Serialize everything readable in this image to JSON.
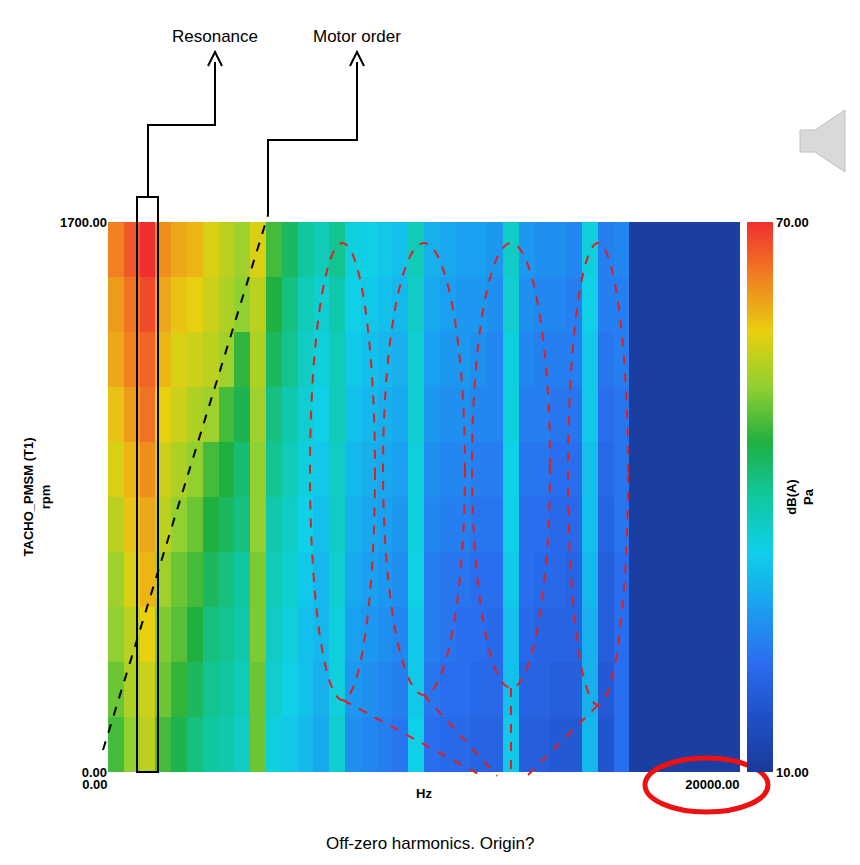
{
  "chart_data": {
    "type": "heatmap",
    "xlabel": "Hz",
    "ylabel": [
      "TACHO_PMSM (T1)",
      "rpm"
    ],
    "xlim": [
      0,
      20000
    ],
    "ylim": [
      0,
      1700
    ],
    "xticks": [
      {
        "value": 0,
        "label": "0.00"
      },
      {
        "value": 20000,
        "label": "20000.00"
      }
    ],
    "yticks": [
      {
        "value": 0,
        "label": "0.00"
      },
      {
        "value": 1700,
        "label": "1700.00"
      }
    ],
    "x_bins": [
      0,
      500,
      1000,
      1500,
      2000,
      2500,
      3000,
      3500,
      4000,
      4500,
      5000,
      5500,
      6000,
      6500,
      7000,
      7500,
      8000,
      8500,
      9000,
      9500,
      10000,
      10500,
      11000,
      11500,
      12000,
      12500,
      13000,
      13500,
      14000,
      14500,
      15000,
      15500,
      16000,
      16500,
      17000,
      17500,
      18000,
      18500,
      19000,
      19500,
      20000
    ],
    "y_bins": [
      0,
      170,
      340,
      510,
      680,
      850,
      1020,
      1190,
      1360,
      1530,
      1700
    ],
    "cells": [
      [
        48,
        52,
        55,
        48,
        45,
        42,
        40,
        39,
        37,
        50,
        35,
        33,
        31,
        29,
        36,
        26,
        25,
        24,
        23,
        34,
        22,
        21,
        21,
        20,
        20,
        33,
        19,
        19,
        18,
        18,
        31,
        17,
        22,
        11,
        11,
        11,
        11,
        11,
        11,
        11
      ],
      [
        50,
        54,
        56,
        50,
        47,
        44,
        41,
        40,
        38,
        50,
        36,
        34,
        32,
        30,
        35,
        27,
        26,
        25,
        24,
        33,
        23,
        22,
        22,
        21,
        21,
        32,
        20,
        20,
        19,
        19,
        30,
        18,
        22,
        11,
        11,
        11,
        11,
        11,
        11,
        11
      ],
      [
        52,
        55,
        58,
        51,
        49,
        46,
        42,
        41,
        39,
        51,
        37,
        35,
        32,
        31,
        35,
        28,
        27,
        26,
        25,
        33,
        24,
        23,
        22,
        22,
        21,
        32,
        21,
        20,
        20,
        20,
        30,
        19,
        22,
        11,
        11,
        11,
        11,
        11,
        11,
        11
      ],
      [
        53,
        57,
        60,
        53,
        50,
        48,
        44,
        42,
        40,
        51,
        38,
        36,
        33,
        31,
        36,
        29,
        28,
        27,
        26,
        34,
        24,
        23,
        23,
        22,
        22,
        33,
        22,
        21,
        21,
        20,
        31,
        19,
        22,
        11,
        11,
        11,
        11,
        11,
        11,
        11
      ],
      [
        55,
        59,
        61,
        55,
        52,
        50,
        46,
        44,
        42,
        52,
        39,
        37,
        34,
        32,
        37,
        30,
        29,
        28,
        27,
        35,
        25,
        24,
        24,
        23,
        23,
        34,
        22,
        22,
        21,
        21,
        32,
        20,
        23,
        11,
        11,
        11,
        11,
        11,
        11,
        11
      ],
      [
        57,
        60,
        63,
        56,
        54,
        52,
        48,
        46,
        43,
        52,
        41,
        38,
        35,
        33,
        37,
        31,
        30,
        29,
        28,
        35,
        26,
        25,
        25,
        24,
        24,
        34,
        23,
        23,
        22,
        22,
        32,
        21,
        23,
        11,
        11,
        11,
        11,
        11,
        11,
        11
      ],
      [
        59,
        62,
        65,
        58,
        56,
        54,
        53,
        48,
        45,
        53,
        42,
        39,
        36,
        34,
        38,
        32,
        31,
        30,
        29,
        36,
        27,
        26,
        26,
        25,
        25,
        35,
        24,
        24,
        23,
        23,
        33,
        22,
        23,
        11,
        11,
        11,
        11,
        11,
        11,
        11
      ],
      [
        61,
        64,
        66,
        60,
        57,
        56,
        55,
        53,
        47,
        54,
        44,
        41,
        37,
        35,
        38,
        33,
        32,
        31,
        30,
        36,
        28,
        27,
        27,
        26,
        25,
        35,
        25,
        24,
        24,
        24,
        33,
        23,
        24,
        11,
        11,
        11,
        11,
        11,
        11,
        11
      ],
      [
        62,
        65,
        68,
        61,
        59,
        58,
        56,
        54,
        52,
        55,
        46,
        42,
        38,
        36,
        39,
        34,
        33,
        32,
        31,
        37,
        29,
        28,
        27,
        27,
        26,
        36,
        26,
        25,
        25,
        24,
        34,
        24,
        24,
        11,
        11,
        11,
        11,
        11,
        11,
        11
      ],
      [
        64,
        67,
        70,
        63,
        61,
        60,
        57,
        55,
        53,
        57,
        48,
        44,
        40,
        38,
        41,
        35,
        34,
        33,
        32,
        38,
        30,
        29,
        28,
        28,
        27,
        37,
        27,
        26,
        26,
        25,
        35,
        24,
        25,
        11,
        11,
        11,
        11,
        11,
        11,
        11
      ]
    ],
    "colorbar": {
      "range": [
        10,
        70
      ],
      "ticks": [
        {
          "value": 10,
          "label": "10.00"
        },
        {
          "value": 70,
          "label": "70.00"
        }
      ],
      "title": [
        "dB(A)",
        "Pa"
      ]
    },
    "annotations": {
      "resonance": "Resonance",
      "motor_order": "Motor order",
      "note": "Off-zero harmonics. Origin?"
    }
  }
}
